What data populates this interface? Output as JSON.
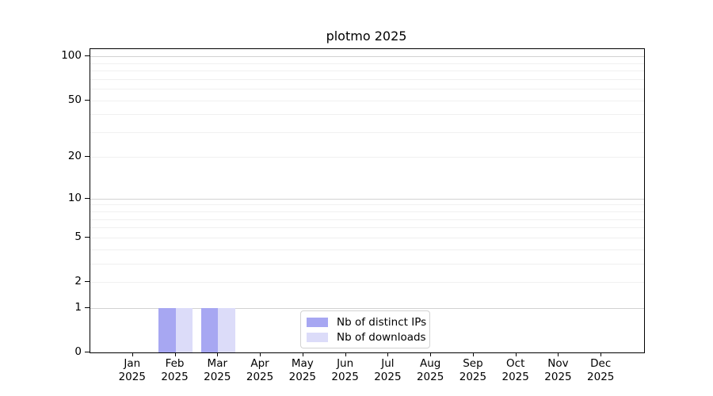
{
  "chart_data": {
    "type": "bar",
    "title": "plotmo 2025",
    "categories": [
      "Jan 2025",
      "Feb 2025",
      "Mar 2025",
      "Apr 2025",
      "May 2025",
      "Jun 2025",
      "Jul 2025",
      "Aug 2025",
      "Sep 2025",
      "Oct 2025",
      "Nov 2025",
      "Dec 2025"
    ],
    "series": [
      {
        "name": "Nb of distinct IPs",
        "color": "#a7a7f2",
        "values": [
          0,
          1,
          1,
          0,
          0,
          0,
          0,
          0,
          0,
          0,
          0,
          0
        ]
      },
      {
        "name": "Nb of downloads",
        "color": "#dcdcf9",
        "values": [
          0,
          1,
          1,
          0,
          0,
          0,
          0,
          0,
          0,
          0,
          0,
          0
        ]
      }
    ],
    "xlabel": "",
    "ylabel": "",
    "yscale": "log1p",
    "y_ticks": [
      0,
      1,
      2,
      5,
      10,
      20,
      50,
      100
    ],
    "ylim": [
      0,
      113
    ],
    "grid": "horizontal",
    "grid_major": [
      1,
      10,
      100
    ],
    "grid_minor": [
      2,
      3,
      4,
      5,
      6,
      7,
      8,
      9,
      20,
      30,
      40,
      50,
      60,
      70,
      80,
      90
    ],
    "legend_position": "lower center"
  },
  "colors": {
    "axis": "#000000",
    "major_grid": "#d2d2d2",
    "minor_grid": "#f0f0f0",
    "background": "#ffffff"
  }
}
